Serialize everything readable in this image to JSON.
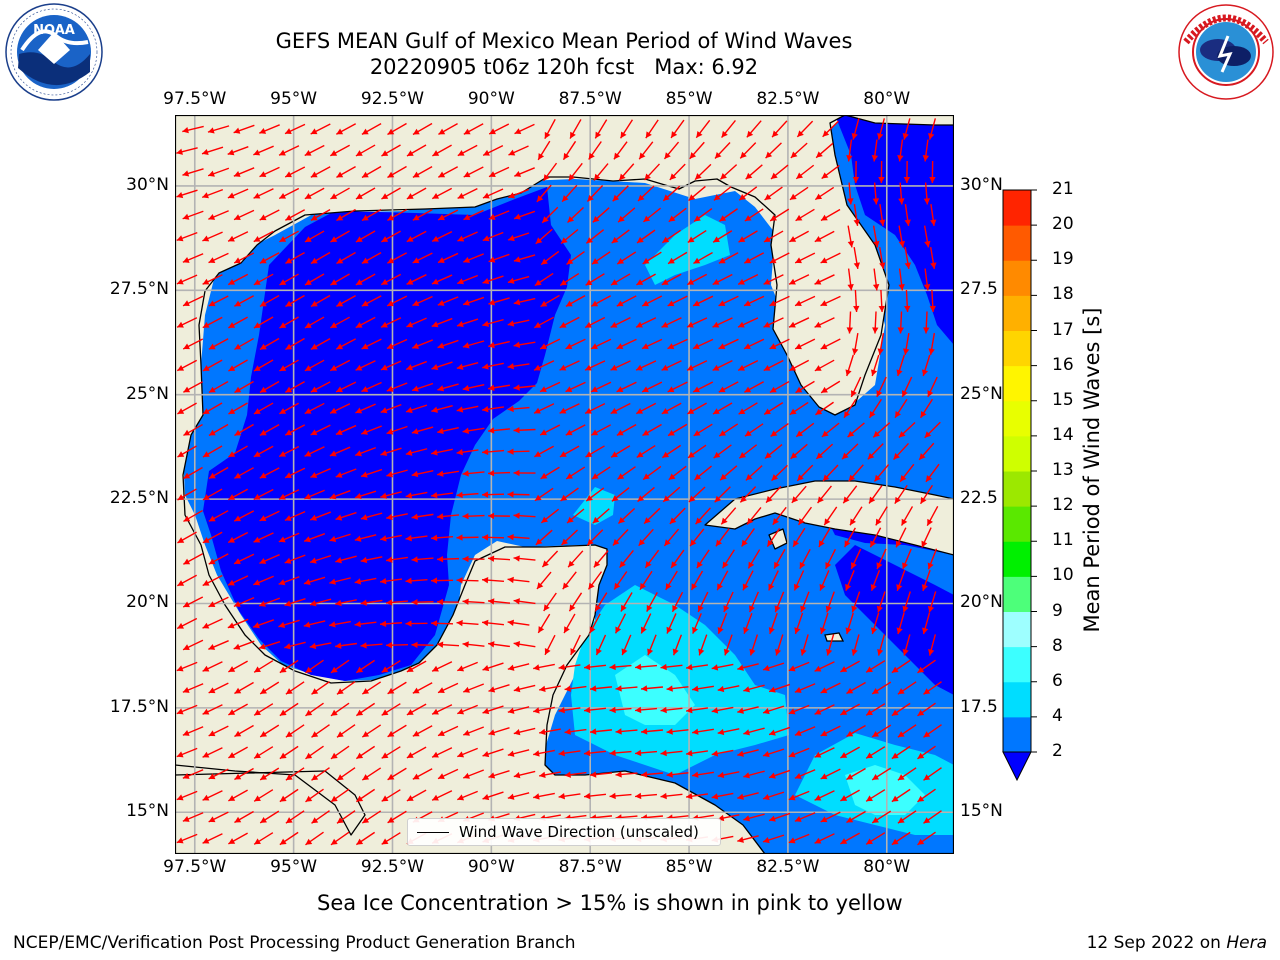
{
  "header": {
    "title_line1": "GEFS MEAN Gulf of Mexico Mean Period of Wind Waves",
    "title_line2": "20220905 t06z 120h fcst   Max: 6.92"
  },
  "logos": {
    "left": "NOAA",
    "left_ring": "NATIONAL OCEANIC AND ATMOSPHERIC ADMINISTRATION · U.S. DEPARTMENT OF COMMERCE",
    "right_ring": "NATIONAL WEATHER SERVICE"
  },
  "axes": {
    "lon_labels": [
      "97.5°W",
      "95°W",
      "92.5°W",
      "90°W",
      "87.5°W",
      "85°W",
      "82.5°W",
      "80°W"
    ],
    "lon_values": [
      -97.5,
      -95,
      -92.5,
      -90,
      -87.5,
      -85,
      -82.5,
      -80
    ],
    "lat_labels_left": [
      "30°N",
      "27.5°N",
      "25°N",
      "22.5°N",
      "20°N",
      "17.5°N",
      "15°N"
    ],
    "lat_labels_right": [
      "30°N",
      "27.5",
      "25°N",
      "22.5",
      "20°N",
      "17.5",
      "15°N"
    ],
    "lat_values": [
      30,
      27.5,
      25,
      22.5,
      20,
      17.5,
      15
    ]
  },
  "map": {
    "extent": {
      "lon_min": -98,
      "lon_max": -78.3,
      "lat_min": 14,
      "lat_max": 31.7
    },
    "colors": {
      "land": "#efeedb",
      "coast": "#000000",
      "grid": "#b3b3b3",
      "arrow": "#ff0000"
    },
    "max_period": 6.92
  },
  "colorbar": {
    "label": "Mean Period of Wind Waves [s]",
    "ticks": [
      "2",
      "4",
      "6",
      "8",
      "9",
      "10",
      "11",
      "12",
      "13",
      "14",
      "15",
      "16",
      "17",
      "18",
      "19",
      "20",
      "21"
    ],
    "colors": [
      "#0077ff",
      "#00ddff",
      "#3cffff",
      "#9effff",
      "#4dff7a",
      "#00f000",
      "#5ae800",
      "#9ce800",
      "#cfff00",
      "#e8ff00",
      "#fff500",
      "#ffd500",
      "#ffb000",
      "#ff8a00",
      "#ff5a00",
      "#ff2400"
    ],
    "under_color": "#0000ff"
  },
  "legend": {
    "label": "Wind Wave Direction (unscaled)"
  },
  "notes": {
    "sea_ice": "Sea Ice Concentration > 15% is shown in pink to yellow",
    "credit": "NCEP/EMC/Verification Post Processing Product Generation Branch",
    "date_prefix": "12 Sep 2022 on ",
    "date_machine": "Hera"
  }
}
